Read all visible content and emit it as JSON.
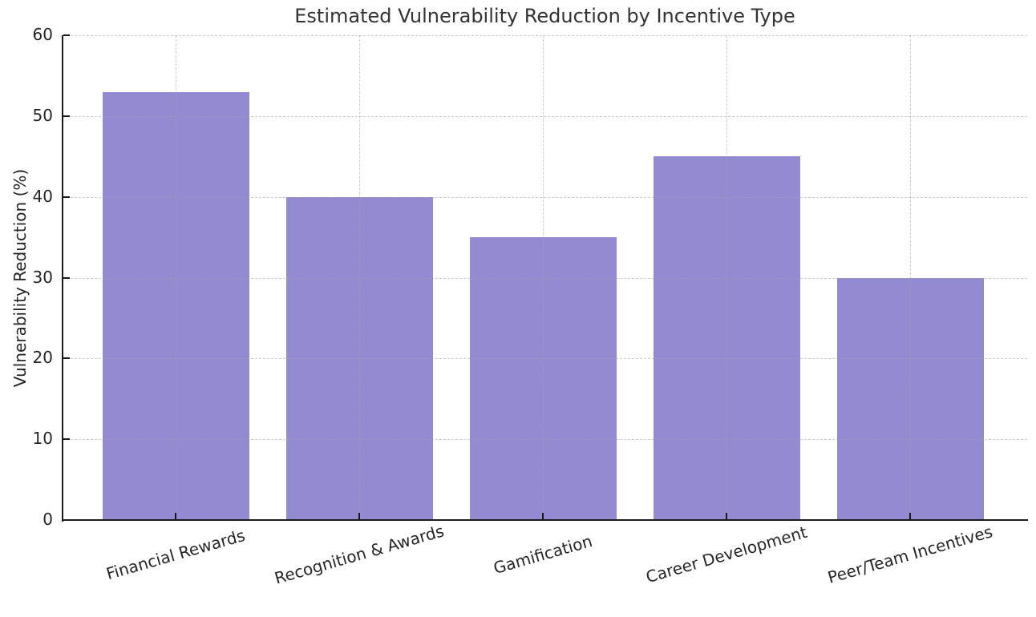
{
  "chart_data": {
    "type": "bar",
    "title": "Estimated Vulnerability Reduction by Incentive Type",
    "categories": [
      "Financial Rewards",
      "Recognition & Awards",
      "Gamification",
      "Career Development",
      "Peer/Team Incentives"
    ],
    "values": [
      53,
      40,
      35,
      45,
      30
    ],
    "xlabel": "",
    "ylabel": "Vulnerability Reduction (%)",
    "ylim": [
      0,
      60
    ],
    "yticks": [
      0,
      10,
      20,
      30,
      40,
      50,
      60
    ],
    "grid": true,
    "grid_style": "dashed",
    "legend": "none",
    "colors": {
      "bar": "#938bd2",
      "grid": "#c9c9c9",
      "axis": "#1a1a1a",
      "text": "#262626",
      "title": "#333333",
      "background": "#ffffff"
    }
  }
}
